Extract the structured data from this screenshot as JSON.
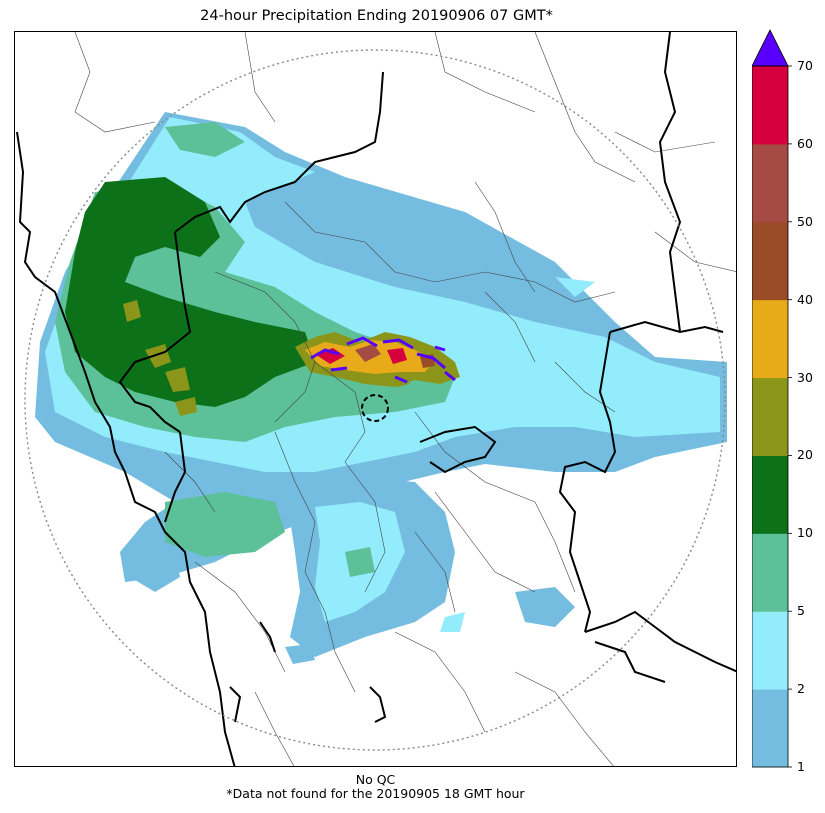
{
  "title": "24-hour Precipitation Ending 20190906 07 GMT*",
  "footer": {
    "line1": "No QC",
    "line2": "*Data not found for the 20190905 18 GMT hour"
  },
  "colorbar": {
    "levels": [
      {
        "label": "1",
        "value": 1
      },
      {
        "label": "2",
        "value": 2
      },
      {
        "label": "5",
        "value": 5
      },
      {
        "label": "10",
        "value": 10
      },
      {
        "label": "20",
        "value": 20
      },
      {
        "label": "30",
        "value": 30
      },
      {
        "label": "40",
        "value": 40
      },
      {
        "label": "50",
        "value": 50
      },
      {
        "label": "60",
        "value": 60
      },
      {
        "label": "70",
        "value": 70
      }
    ],
    "colors": [
      "#74bde0",
      "#93ecfb",
      "#5cc199",
      "#0c7118",
      "#8a9519",
      "#e7ab19",
      "#9a4b27",
      "#a64a44",
      "#d6003f"
    ],
    "over_color": "#5800ff",
    "extend": "max"
  },
  "colors": {
    "range_ring": "#888888",
    "coastline": "#000000",
    "state_borders": "#000000",
    "district_borders": "#444444"
  }
}
